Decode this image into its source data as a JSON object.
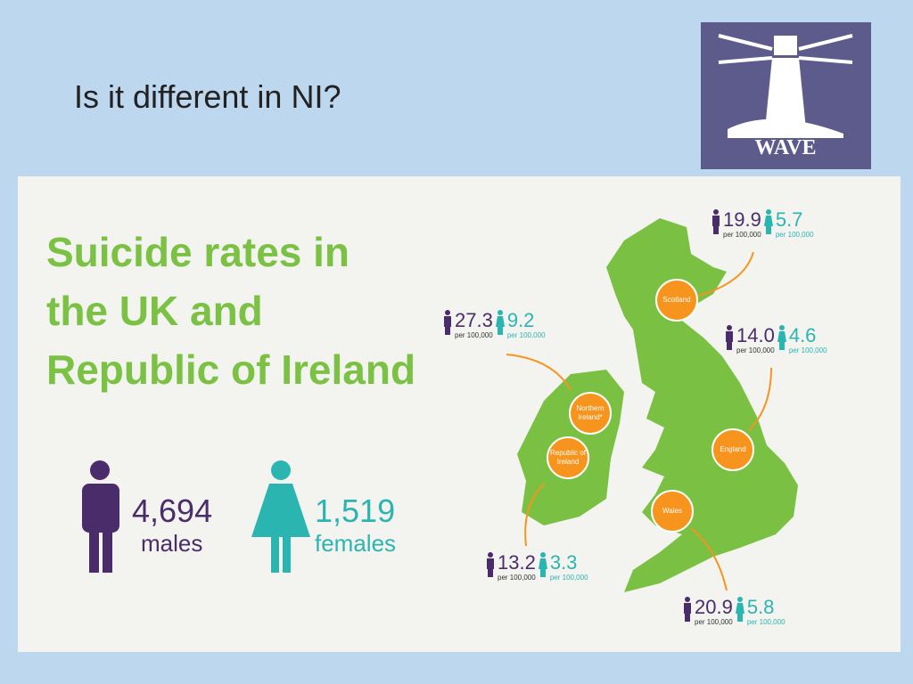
{
  "slide": {
    "title": "Is it different in NI?",
    "logo_text": "WAVE"
  },
  "infographic": {
    "title": "Suicide rates in the UK and Republic of Ireland",
    "totals": {
      "males": {
        "number": "4,694",
        "label": "males"
      },
      "females": {
        "number": "1,519",
        "label": "females"
      }
    },
    "regions": [
      {
        "name": "Scotland",
        "male": "19.9",
        "female": "5.7",
        "unit": "per 100,000"
      },
      {
        "name": "Northern Ireland*",
        "male": "27.3",
        "female": "9.2",
        "unit": "per 100,000"
      },
      {
        "name": "England",
        "male": "14.0",
        "female": "4.6",
        "unit": "per 100,000"
      },
      {
        "name": "Republic of Ireland",
        "male": "13.2",
        "female": "3.3",
        "unit": "per 100,000"
      },
      {
        "name": "Wales",
        "male": "20.9",
        "female": "5.8",
        "unit": "per 100,000"
      }
    ]
  }
}
